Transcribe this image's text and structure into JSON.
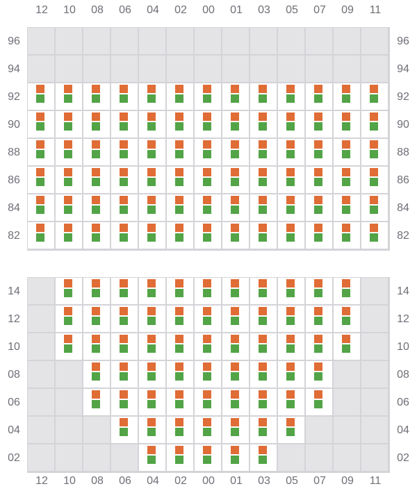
{
  "colors": {
    "occupied": "#e06c36",
    "available": "#52a447",
    "blocked": "#e4e4e7",
    "gridline": "#d4d4d8"
  },
  "columns": [
    "12",
    "10",
    "08",
    "06",
    "04",
    "02",
    "00",
    "01",
    "03",
    "05",
    "07",
    "09",
    "11"
  ],
  "sections": [
    {
      "rows": [
        {
          "label": "96",
          "active": [
            0,
            0,
            0,
            0,
            0,
            0,
            0,
            0,
            0,
            0,
            0,
            0,
            0
          ]
        },
        {
          "label": "94",
          "active": [
            0,
            0,
            0,
            0,
            0,
            0,
            0,
            0,
            0,
            0,
            0,
            0,
            0
          ]
        },
        {
          "label": "92",
          "active": [
            1,
            1,
            1,
            1,
            1,
            1,
            1,
            1,
            1,
            1,
            1,
            1,
            1
          ]
        },
        {
          "label": "90",
          "active": [
            1,
            1,
            1,
            1,
            1,
            1,
            1,
            1,
            1,
            1,
            1,
            1,
            1
          ]
        },
        {
          "label": "88",
          "active": [
            1,
            1,
            1,
            1,
            1,
            1,
            1,
            1,
            1,
            1,
            1,
            1,
            1
          ]
        },
        {
          "label": "86",
          "active": [
            1,
            1,
            1,
            1,
            1,
            1,
            1,
            1,
            1,
            1,
            1,
            1,
            1
          ]
        },
        {
          "label": "84",
          "active": [
            1,
            1,
            1,
            1,
            1,
            1,
            1,
            1,
            1,
            1,
            1,
            1,
            1
          ]
        },
        {
          "label": "82",
          "active": [
            1,
            1,
            1,
            1,
            1,
            1,
            1,
            1,
            1,
            1,
            1,
            1,
            1
          ]
        }
      ]
    },
    {
      "rows": [
        {
          "label": "14",
          "active": [
            0,
            1,
            1,
            1,
            1,
            1,
            1,
            1,
            1,
            1,
            1,
            1,
            0
          ]
        },
        {
          "label": "12",
          "active": [
            0,
            1,
            1,
            1,
            1,
            1,
            1,
            1,
            1,
            1,
            1,
            1,
            0
          ]
        },
        {
          "label": "10",
          "active": [
            0,
            1,
            1,
            1,
            1,
            1,
            1,
            1,
            1,
            1,
            1,
            1,
            0
          ]
        },
        {
          "label": "08",
          "active": [
            0,
            0,
            1,
            1,
            1,
            1,
            1,
            1,
            1,
            1,
            1,
            0,
            0
          ]
        },
        {
          "label": "06",
          "active": [
            0,
            0,
            1,
            1,
            1,
            1,
            1,
            1,
            1,
            1,
            1,
            0,
            0
          ]
        },
        {
          "label": "04",
          "active": [
            0,
            0,
            0,
            1,
            1,
            1,
            1,
            1,
            1,
            1,
            0,
            0,
            0
          ]
        },
        {
          "label": "02",
          "active": [
            0,
            0,
            0,
            0,
            1,
            1,
            1,
            1,
            1,
            0,
            0,
            0,
            0
          ]
        }
      ]
    }
  ]
}
